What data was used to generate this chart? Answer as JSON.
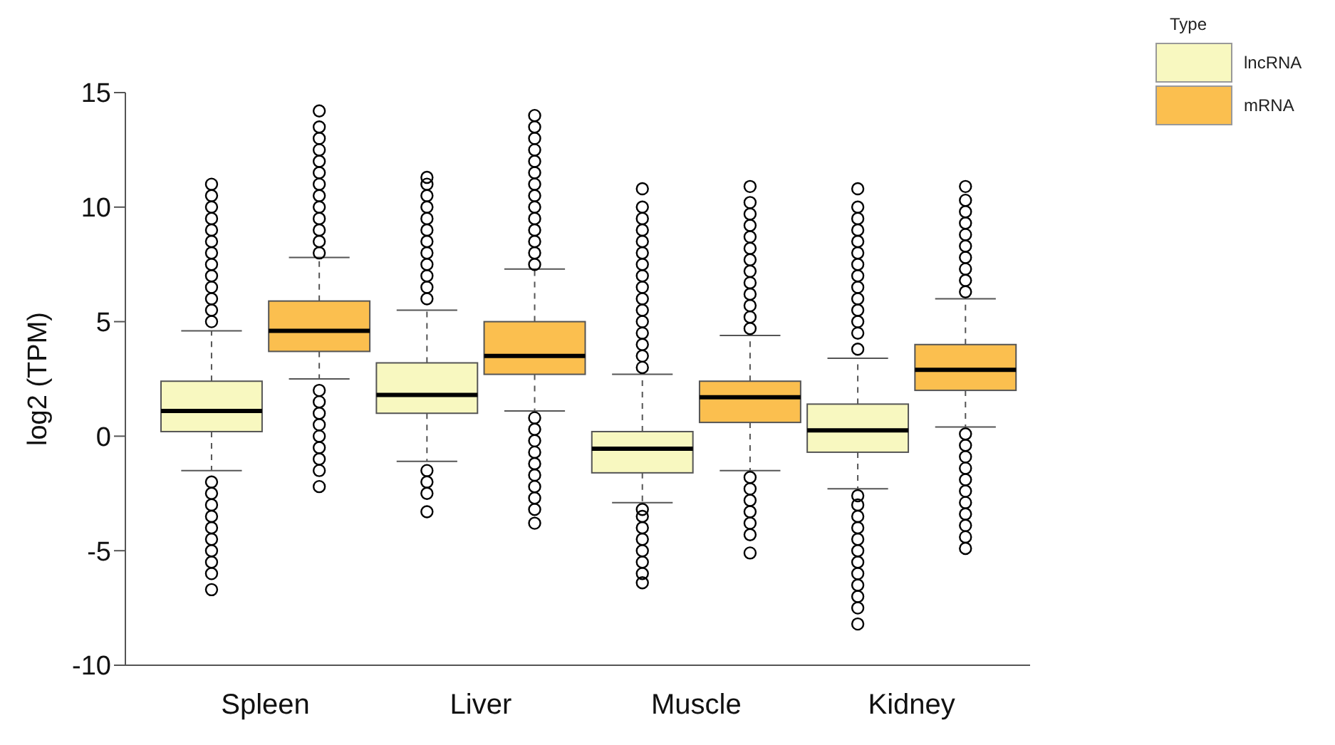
{
  "chart_data": {
    "type": "box",
    "categories": [
      "Spleen",
      "Liver",
      "Muscle",
      "Kidney"
    ],
    "ylabel": "log2 (TPM)",
    "legend_title": "Type",
    "legend": "top right",
    "ylim": [
      -10,
      15
    ],
    "yticks": [
      -10,
      -5,
      0,
      5,
      10,
      15
    ],
    "series": [
      {
        "name": "lncRNA",
        "color": "#f8f8c0",
        "boxes": [
          {
            "low": -1.5,
            "q1": 0.2,
            "median": 1.1,
            "q3": 2.4,
            "high": 4.6,
            "outliers": [
              5,
              5.5,
              6,
              6.5,
              7,
              7.5,
              8,
              8.5,
              9,
              9.5,
              10,
              10.5,
              11,
              -2,
              -2.5,
              -3,
              -3.5,
              -4,
              -4.5,
              -5,
              -5.5,
              -6,
              -6.7
            ]
          },
          {
            "low": -1.1,
            "q1": 1.0,
            "median": 1.8,
            "q3": 3.2,
            "high": 5.5,
            "outliers": [
              6,
              6.5,
              7,
              7.5,
              8,
              8.5,
              9,
              9.5,
              10,
              10.5,
              11,
              11.3,
              -1.5,
              -2,
              -2.5,
              -3.3
            ]
          },
          {
            "low": -2.9,
            "q1": -1.6,
            "median": -0.55,
            "q3": 0.2,
            "high": 2.7,
            "outliers": [
              3,
              3.5,
              4,
              4.5,
              5,
              5.5,
              6,
              6.5,
              7,
              7.5,
              8,
              8.5,
              9,
              9.5,
              10,
              10.8,
              -3.2,
              -3.5,
              -4,
              -4.5,
              -5,
              -5.5,
              -6,
              -6.4
            ]
          },
          {
            "low": -2.3,
            "q1": -0.7,
            "median": 0.25,
            "q3": 1.4,
            "high": 3.4,
            "outliers": [
              3.8,
              4.5,
              5,
              5.5,
              6,
              6.5,
              7,
              7.5,
              8,
              8.5,
              9,
              9.5,
              10,
              10.8,
              -2.6,
              -3,
              -3.5,
              -4,
              -4.5,
              -5,
              -5.5,
              -6,
              -6.5,
              -7,
              -7.5,
              -8.2
            ]
          }
        ]
      },
      {
        "name": "mRNA",
        "color": "#fbbf4f",
        "boxes": [
          {
            "low": 2.5,
            "q1": 3.7,
            "median": 4.6,
            "q3": 5.9,
            "high": 7.8,
            "outliers": [
              8,
              8.5,
              9,
              9.5,
              10,
              10.5,
              11,
              11.5,
              12,
              12.5,
              13,
              13.5,
              14.2,
              2,
              1.5,
              1,
              0.5,
              0,
              -0.5,
              -1,
              -1.5,
              -2.2
            ]
          },
          {
            "low": 1.1,
            "q1": 2.7,
            "median": 3.5,
            "q3": 5.0,
            "high": 7.3,
            "outliers": [
              7.5,
              8,
              8.5,
              9,
              9.5,
              10,
              10.5,
              11,
              11.5,
              12,
              12.5,
              13,
              13.5,
              14,
              0.8,
              0.3,
              -0.2,
              -0.7,
              -1.2,
              -1.7,
              -2.2,
              -2.7,
              -3.2,
              -3.8
            ]
          },
          {
            "low": -1.5,
            "q1": 0.6,
            "median": 1.7,
            "q3": 2.4,
            "high": 4.4,
            "outliers": [
              4.7,
              5.2,
              5.7,
              6.2,
              6.7,
              7.2,
              7.7,
              8.2,
              8.7,
              9.2,
              9.7,
              10.2,
              10.9,
              -1.8,
              -2.3,
              -2.8,
              -3.3,
              -3.8,
              -4.3,
              -5.1
            ]
          },
          {
            "low": 0.4,
            "q1": 2.0,
            "median": 2.9,
            "q3": 4.0,
            "high": 6.0,
            "outliers": [
              6.3,
              6.8,
              7.3,
              7.8,
              8.3,
              8.8,
              9.3,
              9.8,
              10.3,
              10.9,
              0.1,
              -0.4,
              -0.9,
              -1.4,
              -1.9,
              -2.4,
              -2.9,
              -3.4,
              -3.9,
              -4.4,
              -4.9
            ]
          }
        ]
      }
    ]
  }
}
